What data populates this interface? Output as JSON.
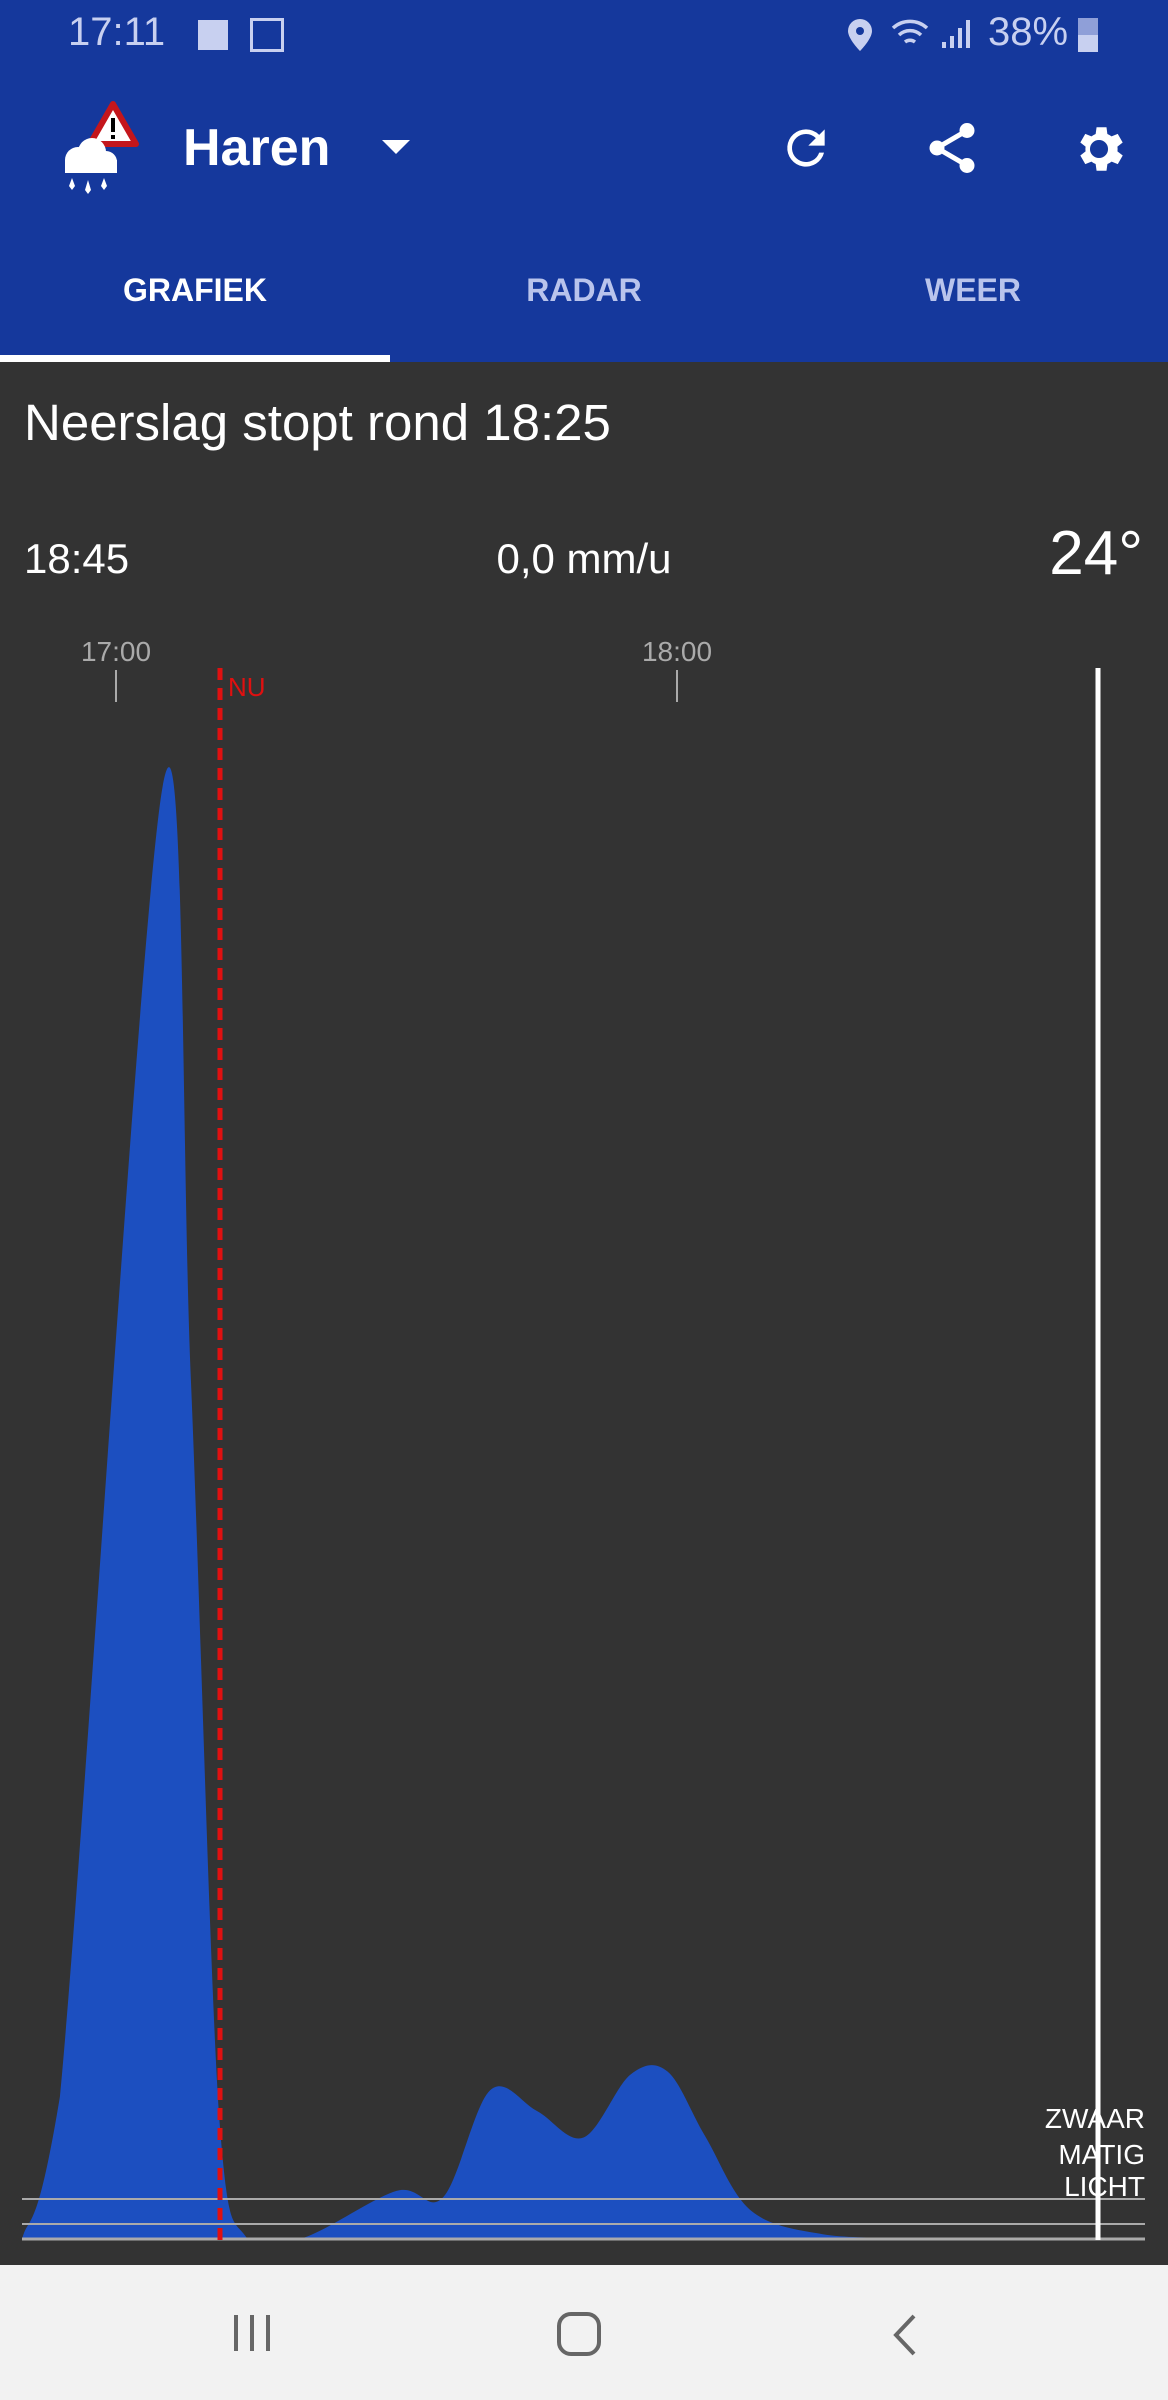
{
  "status_bar": {
    "time": "17:11",
    "battery": "38%",
    "icons": [
      "sonos-icon",
      "map-icon",
      "location-icon",
      "wifi-icon",
      "signal-icon",
      "battery-icon"
    ]
  },
  "header": {
    "location": "Haren",
    "icons": [
      "rain-warning-icon",
      "dropdown-icon",
      "refresh-icon",
      "share-icon",
      "settings-icon"
    ]
  },
  "tabs": [
    {
      "label": "GRAFIEK",
      "active": true
    },
    {
      "label": "RADAR"
    },
    {
      "label": "WEER"
    }
  ],
  "summary": {
    "message": "Neerslag stopt rond 18:25",
    "selected_time": "18:45",
    "intensity": "0,0 mm/u",
    "temperature": "24°"
  },
  "colors": {
    "header": "#15389c",
    "rain": "#1c4fc0",
    "now_line": "#e01010",
    "background": "#333333"
  },
  "chart_data": {
    "type": "area",
    "x_ticks": [
      "17:00",
      "18:00"
    ],
    "now_label": "NU",
    "now_time": "17:11",
    "cursor_time": "18:45",
    "levels": [
      "ZWAAR",
      "MATIG",
      "LICHT"
    ],
    "x": [
      "16:50",
      "16:54",
      "17:05",
      "17:08",
      "17:11",
      "17:14",
      "17:20",
      "17:30",
      "17:35",
      "17:40",
      "17:45",
      "17:50",
      "17:55",
      "17:59",
      "18:03",
      "18:08",
      "18:16",
      "18:23"
    ],
    "relative_intensity": [
      0,
      0.09,
      0.925,
      0.548,
      0.08,
      0,
      0,
      0.03,
      0.026,
      0.094,
      0.081,
      0.064,
      0.104,
      0.106,
      0.065,
      0.017,
      0.002,
      0
    ]
  }
}
